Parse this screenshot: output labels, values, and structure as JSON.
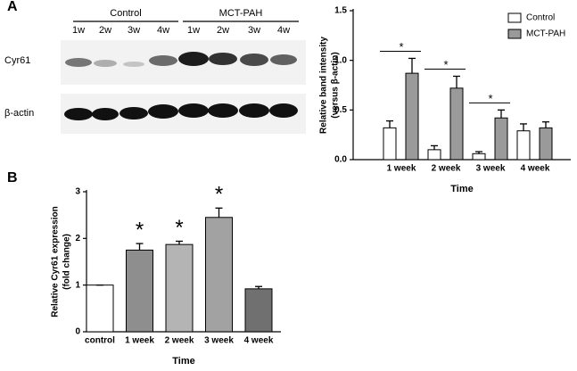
{
  "blot": {
    "panel_label": "A",
    "groups": [
      "Control",
      "MCT-PAH"
    ],
    "lanes": [
      "1w",
      "2w",
      "3w",
      "4w",
      "1w",
      "2w",
      "3w",
      "4w"
    ],
    "rows": [
      "Cyr61",
      "β-actin"
    ]
  },
  "chart_data": [
    {
      "type": "bar",
      "xlabel": "Time",
      "ylabel": [
        "Relative band intensity",
        "(versus β-actin)"
      ],
      "categories": [
        "1 week",
        "2 week",
        "3 week",
        "4 week"
      ],
      "series": [
        {
          "name": "Control",
          "color": "#ffffff",
          "values": [
            0.32,
            0.1,
            0.06,
            0.29
          ],
          "errors": [
            0.07,
            0.04,
            0.02,
            0.07
          ]
        },
        {
          "name": "MCT-PAH",
          "color": "#9a9a9a",
          "values": [
            0.87,
            0.72,
            0.42,
            0.32
          ],
          "errors": [
            0.15,
            0.12,
            0.08,
            0.06
          ]
        }
      ],
      "significance": [
        "*",
        "*",
        "*",
        null
      ],
      "ylim": [
        0,
        1.5
      ],
      "yticks": [
        {
          "value": 0,
          "label": "0.0"
        },
        0.5,
        {
          "value": 1,
          "label": "1.0"
        },
        1.5
      ],
      "legend": "top-right"
    },
    {
      "type": "bar",
      "panel_label": "B",
      "xlabel": "Time",
      "ylabel": [
        "Relative Cyr61 expression",
        "(fold change)"
      ],
      "categories": [
        "control",
        "1 week",
        "2 week",
        "3 week",
        "4 week"
      ],
      "values": [
        1.0,
        1.75,
        1.87,
        2.45,
        0.92
      ],
      "errors": [
        0,
        0.14,
        0.07,
        0.2,
        0.05
      ],
      "colors": [
        "#ffffff",
        "#8e8e8e",
        "#b4b4b4",
        "#a2a2a2",
        "#707070"
      ],
      "significance": [
        null,
        "*",
        "*",
        "*",
        null
      ],
      "ylim": [
        0,
        3
      ],
      "yticks": [
        0,
        1,
        2,
        3
      ]
    }
  ]
}
